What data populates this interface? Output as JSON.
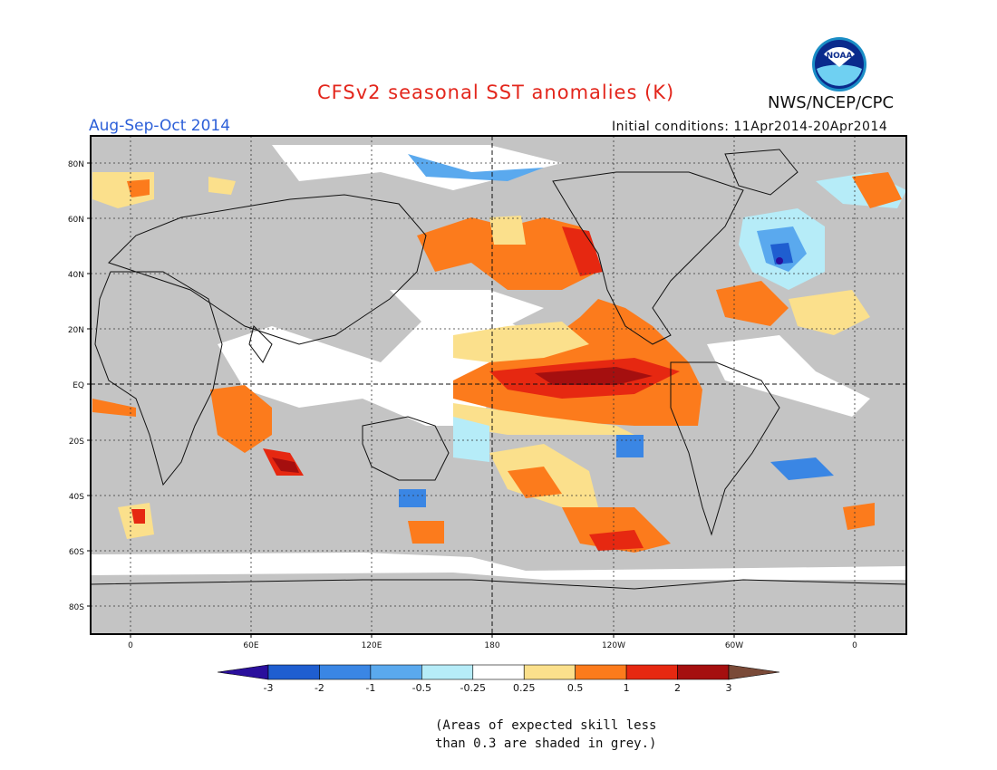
{
  "header": {
    "title": "CFSv2 seasonal SST anomalies (K)",
    "season": "Aug-Sep-Oct 2014",
    "initial_conditions": "Initial conditions: 11Apr2014-20Apr2014",
    "agency": "NWS/NCEP/CPC",
    "logo_text": "NOAA",
    "logo_icon": "noaa-logo-icon"
  },
  "map": {
    "lat_labels": [
      "80N",
      "60N",
      "40N",
      "20N",
      "EQ",
      "20S",
      "40S",
      "60S",
      "80S"
    ],
    "lon_labels": [
      "0",
      "60E",
      "120E",
      "180",
      "120W",
      "60W",
      "0"
    ]
  },
  "colorbar": {
    "labels": [
      "-3",
      "-2",
      "-1",
      "-0.5",
      "-0.25",
      "0.25",
      "0.5",
      "1",
      "2",
      "3"
    ],
    "colors": [
      "#2a0f9c",
      "#1f5ed0",
      "#3a86e4",
      "#5aa9ee",
      "#b6ecf8",
      "#ffffff",
      "#fbe08c",
      "#fc7b1c",
      "#e62811",
      "#a50f0f",
      "#7a4a38"
    ]
  },
  "note": {
    "line1": "(Areas of expected skill less",
    "line2": "than 0.3 are shaded in grey.)"
  },
  "colors": {
    "grey_mask": "#c4c4c4",
    "title": "#e3261c",
    "season": "#2c5fd8"
  }
}
